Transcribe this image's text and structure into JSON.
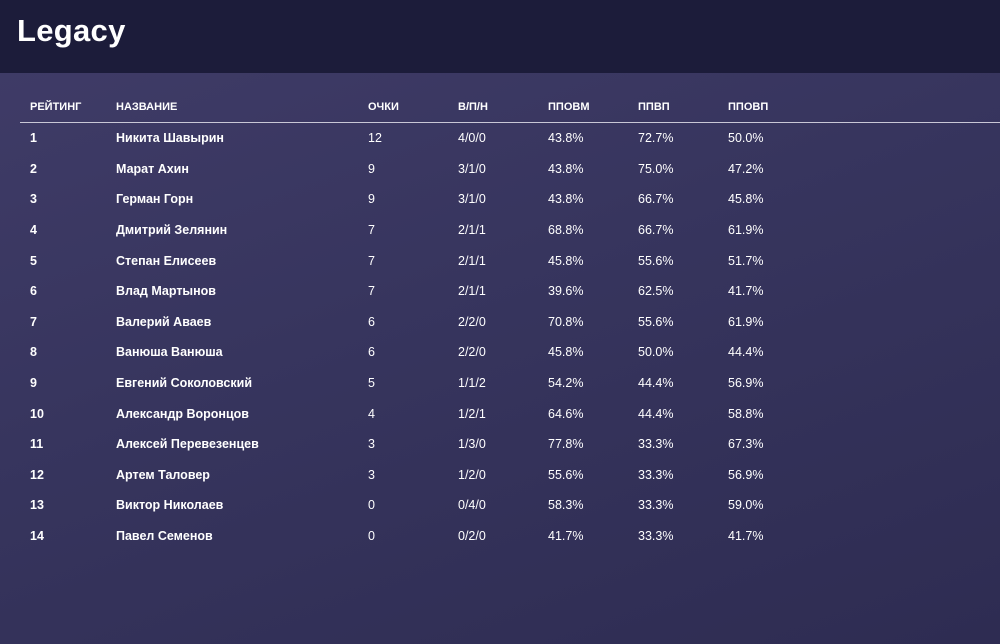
{
  "header": {
    "title": "Legacy"
  },
  "table": {
    "columns": [
      "РЕЙТИНГ",
      "НАЗВАНИЕ",
      "ОЧКИ",
      "В/П/Н",
      "ППОВМ",
      "ППВП",
      "ППОВП"
    ],
    "rows": [
      [
        "1",
        "Никита Шавырин",
        "12",
        "4/0/0",
        "43.8%",
        "72.7%",
        "50.0%"
      ],
      [
        "2",
        "Марат Ахин",
        "9",
        "3/1/0",
        "43.8%",
        "75.0%",
        "47.2%"
      ],
      [
        "3",
        "Герман Горн",
        "9",
        "3/1/0",
        "43.8%",
        "66.7%",
        "45.8%"
      ],
      [
        "4",
        "Дмитрий Зелянин",
        "7",
        "2/1/1",
        "68.8%",
        "66.7%",
        "61.9%"
      ],
      [
        "5",
        "Степан Елисеев",
        "7",
        "2/1/1",
        "45.8%",
        "55.6%",
        "51.7%"
      ],
      [
        "6",
        "Влад Мартынов",
        "7",
        "2/1/1",
        "39.6%",
        "62.5%",
        "41.7%"
      ],
      [
        "7",
        "Валерий Аваев",
        "6",
        "2/2/0",
        "70.8%",
        "55.6%",
        "61.9%"
      ],
      [
        "8",
        "Ванюша Ванюша",
        "6",
        "2/2/0",
        "45.8%",
        "50.0%",
        "44.4%"
      ],
      [
        "9",
        "Евгений Соколовский",
        "5",
        "1/1/2",
        "54.2%",
        "44.4%",
        "56.9%"
      ],
      [
        "10",
        "Александр Воронцов",
        "4",
        "1/2/1",
        "64.6%",
        "44.4%",
        "58.8%"
      ],
      [
        "11",
        "Алексей Перевезенцев",
        "3",
        "1/3/0",
        "77.8%",
        "33.3%",
        "67.3%"
      ],
      [
        "12",
        "Артем Таловер",
        "3",
        "1/2/0",
        "55.6%",
        "33.3%",
        "56.9%"
      ],
      [
        "13",
        "Виктор Николаев",
        "0",
        "0/4/0",
        "58.3%",
        "33.3%",
        "59.0%"
      ],
      [
        "14",
        "Павел Семенов",
        "0",
        "0/2/0",
        "41.7%",
        "33.3%",
        "41.7%"
      ]
    ]
  }
}
